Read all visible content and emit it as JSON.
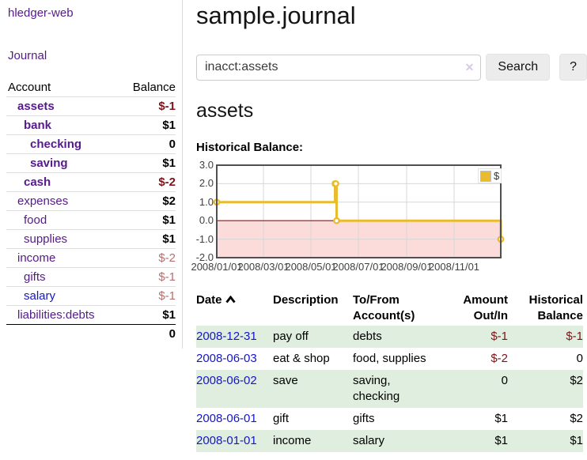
{
  "app": {
    "title": "hledger-web",
    "nav_journal": "Journal"
  },
  "sidebar": {
    "accounts_header": {
      "account": "Account",
      "balance": "Balance"
    },
    "accounts": [
      {
        "name": "assets",
        "balance": "$-1",
        "indent": 1,
        "bold": true,
        "negative": true
      },
      {
        "name": "bank",
        "balance": "$1",
        "indent": 2,
        "bold": true
      },
      {
        "name": "checking",
        "balance": "0",
        "indent": 3,
        "bold": true
      },
      {
        "name": "saving",
        "balance": "$1",
        "indent": 3,
        "bold": true
      },
      {
        "name": "cash",
        "balance": "$-2",
        "indent": 2,
        "bold": true,
        "negative": true
      },
      {
        "name": "expenses",
        "balance": "$2",
        "indent": 1
      },
      {
        "name": "food",
        "balance": "$1",
        "indent": 2
      },
      {
        "name": "supplies",
        "balance": "$1",
        "indent": 2
      },
      {
        "name": "income",
        "balance": "$-2",
        "indent": 1,
        "negative": true,
        "muted": true
      },
      {
        "name": "gifts",
        "balance": "$-1",
        "indent": 2,
        "negative": true,
        "muted": true
      },
      {
        "name": "salary",
        "balance": "$-1",
        "indent": 2,
        "negative": true,
        "muted": true,
        "blue": true
      },
      {
        "name": "liabilities:debts",
        "balance": "$1",
        "indent": 1
      }
    ],
    "total": "0"
  },
  "header": {
    "title": "sample.journal"
  },
  "search": {
    "value": "inacct:assets",
    "clear_icon": "✕",
    "button": "Search",
    "help_button": "?"
  },
  "account_page": {
    "title": "assets",
    "chart_label": "Historical Balance:"
  },
  "chart_data": {
    "type": "line",
    "step": true,
    "title": "Historical Balance",
    "series": [
      {
        "name": "$",
        "color": "#e9bb2e",
        "points": [
          [
            "2008-01-01",
            1
          ],
          [
            "2008-06-01",
            2
          ],
          [
            "2008-06-02",
            2
          ],
          [
            "2008-06-03",
            0
          ],
          [
            "2008-12-31",
            -1
          ]
        ]
      }
    ],
    "xlim": [
      "2008-01-01",
      "2008-12-31"
    ],
    "ylim": [
      -2,
      3
    ],
    "x_ticks": [
      "2008/01/01",
      "2008/03/01",
      "2008/05/01",
      "2008/07/01",
      "2008/09/01",
      "2008/11/01"
    ],
    "y_ticks": [
      3,
      2,
      1,
      0,
      -1,
      -2
    ],
    "legend": "$",
    "legend_position": "top-right",
    "grid": true,
    "negative_fill": "#fcdbdb",
    "zero_line_color": "#9e1010"
  },
  "register": {
    "columns": [
      {
        "label": "Date",
        "sort": "asc"
      },
      {
        "label": "Description"
      },
      {
        "label": "To/From Account(s)"
      },
      {
        "label": "Amount Out/In",
        "align": "right"
      },
      {
        "label": "Historical Balance",
        "align": "right"
      }
    ],
    "rows": [
      {
        "date": "2008-12-31",
        "description": "pay off",
        "accounts": "debts",
        "amount": "$-1",
        "balance": "$-1",
        "amount_neg": true,
        "balance_neg": true
      },
      {
        "date": "2008-06-03",
        "description": "eat & shop",
        "accounts": "food, supplies",
        "amount": "$-2",
        "balance": "0",
        "amount_neg": true
      },
      {
        "date": "2008-06-02",
        "description": "save",
        "accounts": "saving, checking",
        "amount": "0",
        "balance": "$2"
      },
      {
        "date": "2008-06-01",
        "description": "gift",
        "accounts": "gifts",
        "amount": "$1",
        "balance": "$2"
      },
      {
        "date": "2008-01-01",
        "description": "income",
        "accounts": "salary",
        "amount": "$1",
        "balance": "$1"
      }
    ]
  },
  "colors": {
    "link_purple": "#551a8b",
    "link_blue": "#1515cc",
    "negative": "#7f1319",
    "negative_muted": "#b36f6f",
    "row_stripe": "#dfeede",
    "chart_line": "#e9bb2e",
    "chart_negative_fill": "#fcdbdb",
    "chart_zero_line": "#9e1010"
  }
}
